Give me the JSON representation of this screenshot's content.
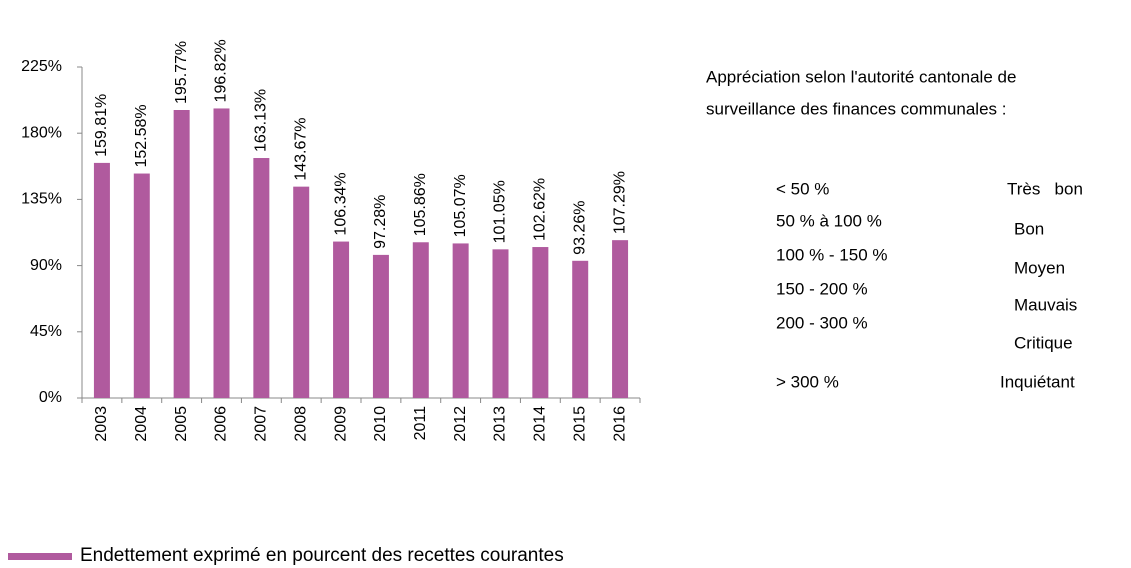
{
  "chart_data": {
    "type": "bar",
    "categories": [
      "2003",
      "2004",
      "2005",
      "2006",
      "2007",
      "2008",
      "2009",
      "2010",
      "2011",
      "2012",
      "2013",
      "2014",
      "2015",
      "2016"
    ],
    "series": [
      {
        "name": "Endettement exprimé en pourcent des recettes courantes",
        "color": "#b05a9e",
        "values": [
          159.81,
          152.58,
          195.77,
          196.82,
          163.13,
          143.67,
          106.34,
          97.28,
          105.86,
          105.07,
          101.05,
          102.62,
          93.26,
          107.29
        ],
        "value_labels": [
          "159.81%",
          "152.58%",
          "195.77%",
          "196.82%",
          "163.13%",
          "143.67%",
          "106.34%",
          "97.28%",
          "105.86%",
          "105.07%",
          "101.05%",
          "102.62%",
          "93.26%",
          "107.29%"
        ]
      }
    ],
    "ylim": [
      0,
      225
    ],
    "yticks": [
      {
        "value": 0,
        "label": "0%"
      },
      {
        "value": 45,
        "label": "45%"
      },
      {
        "value": 90,
        "label": "90%"
      },
      {
        "value": 135,
        "label": "135%"
      },
      {
        "value": 180,
        "label": "180%"
      },
      {
        "value": 225,
        "label": "225%"
      }
    ],
    "grid": false,
    "legend": "bottom-left",
    "annotation": [
      "Appréciation selon l'autorité cantonale de",
      "surveillance des finances communales :"
    ],
    "ratings": [
      {
        "range": "< 50 %",
        "label": "Très   bon"
      },
      {
        "range": "50 % à 100 %",
        "label": "Bon"
      },
      {
        "range": "100 % - 150 %",
        "label": "Moyen"
      },
      {
        "range": "150 - 200 %",
        "label": "Mauvais"
      },
      {
        "range": "200 - 300 %",
        "label": "Critique"
      },
      {
        "range": "> 300 %",
        "label": "Inquiétant"
      }
    ]
  }
}
